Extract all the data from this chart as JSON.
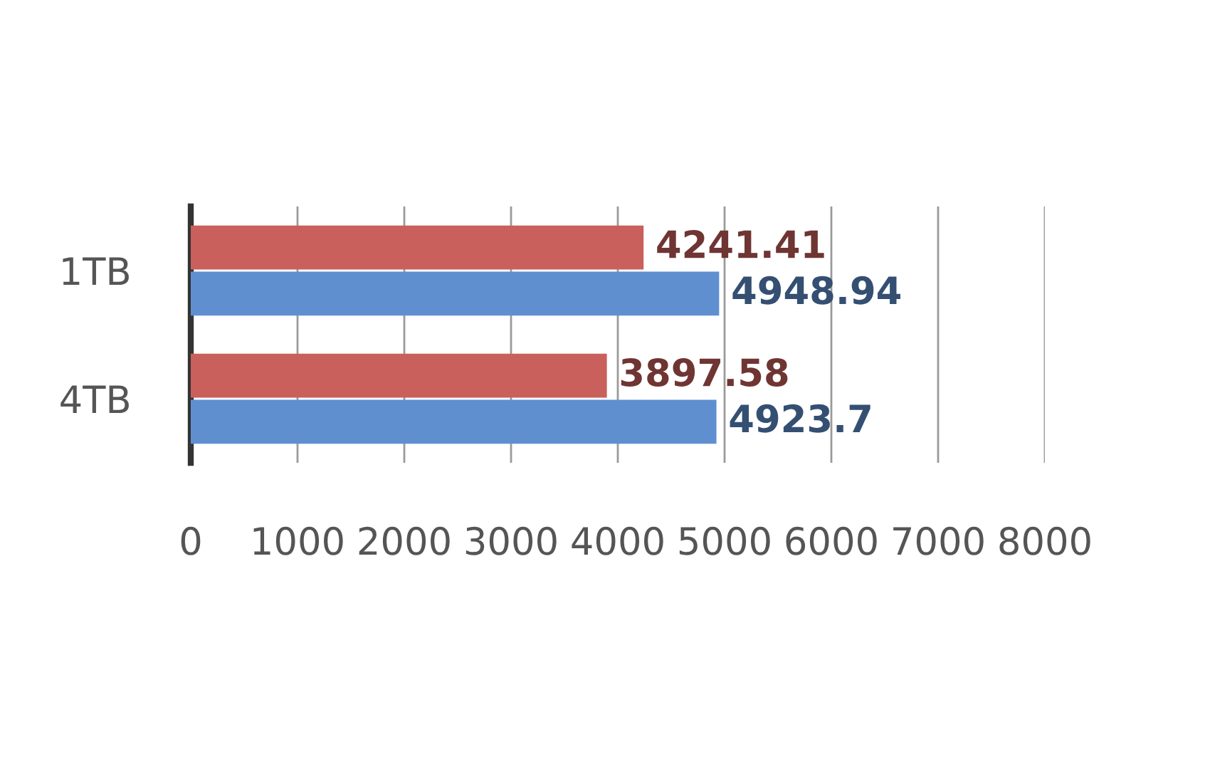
{
  "chart_data": {
    "type": "bar",
    "orientation": "horizontal",
    "categories": [
      "1TB",
      "4TB"
    ],
    "series": [
      {
        "color": "#c9605c",
        "values": [
          4241.41,
          3897.58
        ]
      },
      {
        "color": "#5f8fcf",
        "values": [
          4948.94,
          4923.7
        ]
      }
    ],
    "xlim": [
      0,
      8000
    ],
    "xticks": [
      0,
      1000,
      2000,
      3000,
      4000,
      5000,
      6000,
      7000,
      8000
    ],
    "grid": "x",
    "data_labels": true
  }
}
